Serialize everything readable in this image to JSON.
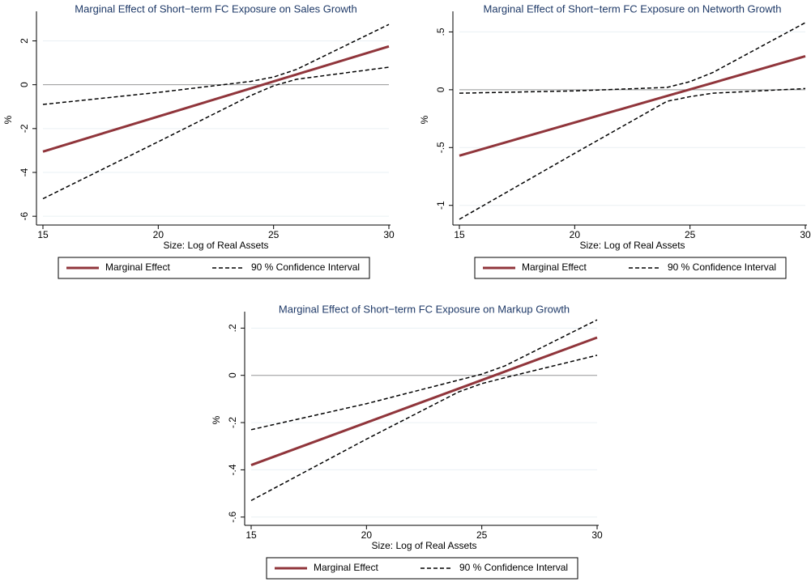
{
  "chart_data": [
    {
      "type": "line",
      "title": "Marginal Effect of Short−term FC Exposure on Sales Growth",
      "xlabel": "Size: Log of Real Assets",
      "ylabel": "%",
      "x": [
        15,
        20,
        24,
        25,
        26,
        30
      ],
      "series": [
        {
          "name": "Marginal Effect",
          "color": "#90353b",
          "values": [
            -3.05,
            -1.45,
            -0.17,
            0.15,
            0.47,
            1.75
          ]
        },
        {
          "name": "90 % Confidence Interval",
          "color": "#000000",
          "dashed": true,
          "upper": [
            -0.9,
            -0.35,
            0.15,
            0.35,
            0.7,
            2.75
          ],
          "lower": [
            -5.2,
            -2.6,
            -0.5,
            -0.05,
            0.25,
            0.8
          ]
        }
      ],
      "xlim": [
        15,
        30
      ],
      "xticks": [
        15,
        20,
        25,
        30
      ],
      "ylim": [
        -6.4,
        3.2
      ],
      "yticks": [
        -6,
        -4,
        -2,
        0,
        2
      ],
      "grid": true,
      "yline": 0
    },
    {
      "type": "line",
      "title": "Marginal Effect of Short−term FC Exposure on Networth Growth",
      "xlabel": "Size: Log of Real Assets",
      "ylabel": "%",
      "x": [
        15,
        20,
        24,
        25,
        26,
        30
      ],
      "series": [
        {
          "name": "Marginal Effect",
          "color": "#90353b",
          "values": [
            -0.57,
            -0.283,
            -0.054,
            0.003,
            0.06,
            0.29
          ]
        },
        {
          "name": "90 % Confidence Interval",
          "color": "#000000",
          "dashed": true,
          "upper": [
            -0.03,
            -0.01,
            0.02,
            0.07,
            0.15,
            0.58
          ],
          "lower": [
            -1.12,
            -0.55,
            -0.1,
            -0.06,
            -0.03,
            0.01
          ]
        }
      ],
      "xlim": [
        15,
        30
      ],
      "xticks": [
        15,
        20,
        25,
        30
      ],
      "ylim": [
        -1.17,
        0.65
      ],
      "yticks": [
        -1,
        {
          "value": -0.5,
          "label": "-.5"
        },
        0,
        {
          "value": 0.5,
          "label": ".5"
        }
      ],
      "grid": true,
      "yline": 0
    },
    {
      "type": "line",
      "title": "Marginal Effect of Short−term FC Exposure on Markup Growth",
      "xlabel": "Size: Log of Real Assets",
      "ylabel": "%",
      "x": [
        15,
        20,
        24,
        25,
        26,
        30
      ],
      "series": [
        {
          "name": "Marginal Effect",
          "color": "#90353b",
          "values": [
            -0.38,
            -0.2,
            -0.056,
            -0.02,
            0.016,
            0.16
          ]
        },
        {
          "name": "90 % Confidence Interval",
          "color": "#000000",
          "dashed": true,
          "upper": [
            -0.23,
            -0.12,
            -0.02,
            0.005,
            0.04,
            0.235
          ],
          "lower": [
            -0.53,
            -0.27,
            -0.07,
            -0.035,
            -0.01,
            0.085
          ]
        }
      ],
      "xlim": [
        15,
        30
      ],
      "xticks": [
        15,
        20,
        25,
        30
      ],
      "ylim": [
        -0.635,
        0.256
      ],
      "yticks": [
        {
          "value": -0.6,
          "label": "-.6"
        },
        {
          "value": -0.4,
          "label": "-.4"
        },
        {
          "value": -0.2,
          "label": "-.2"
        },
        0,
        {
          "value": 0.2,
          "label": ".2"
        }
      ],
      "grid": true,
      "yline": 0
    }
  ]
}
